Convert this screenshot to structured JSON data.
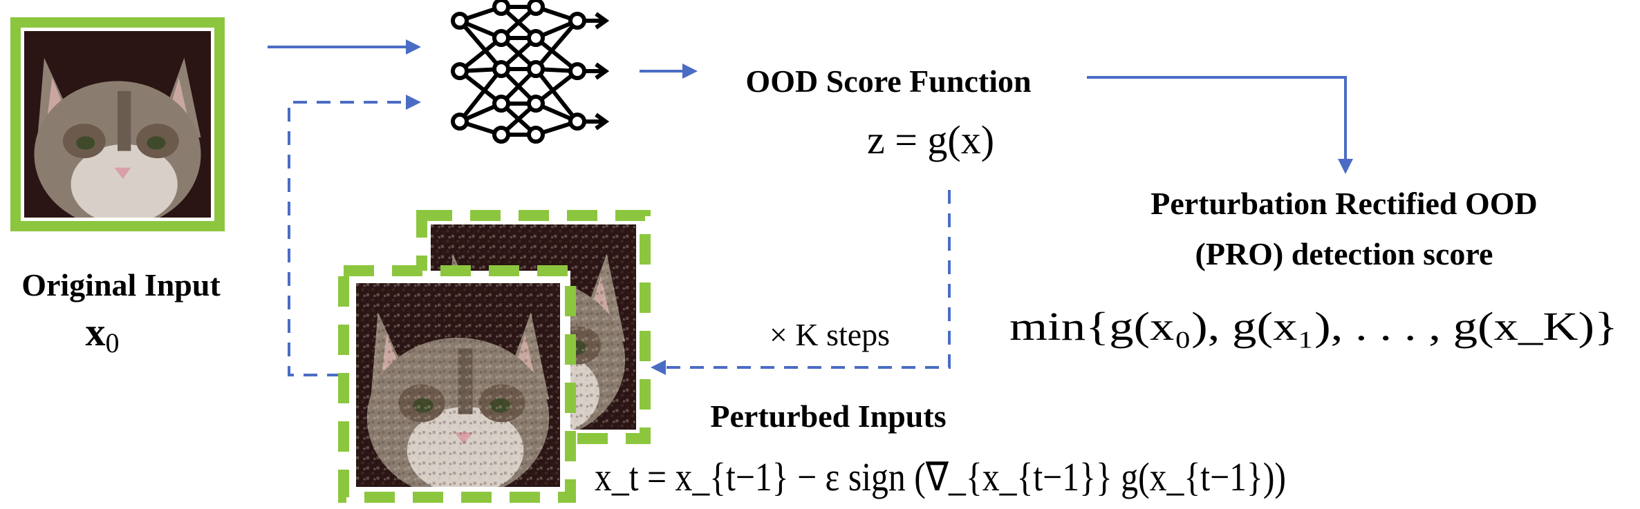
{
  "labels": {
    "original_input": "Original Input",
    "original_symbol_base": "x",
    "original_symbol_sub": "0",
    "ood_score_function": "OOD Score Function",
    "score_eq": "z = g(x)",
    "pro_line1": "Perturbation Rectified OOD",
    "pro_line2": "(PRO) detection score",
    "pro_formula": "min{g(x₀), g(x₁), . . . , g(x_K)}",
    "steps": "× K  steps",
    "perturbed_inputs": "Perturbed Inputs",
    "update_rule": "x_t = x_{t−1} − ε sign (∇_{x_{t−1}} g(x_{t−1}))"
  },
  "colors": {
    "arrow_blue": "#4a6cc4",
    "frame_green": "#8cc63f",
    "cat_fur": "#8a7d70",
    "cat_dark": "#2a1414"
  },
  "icons": {
    "network": "neural-network-icon",
    "cat_original": "cat-image",
    "cat_perturbed": "perturbed-cat-image"
  }
}
